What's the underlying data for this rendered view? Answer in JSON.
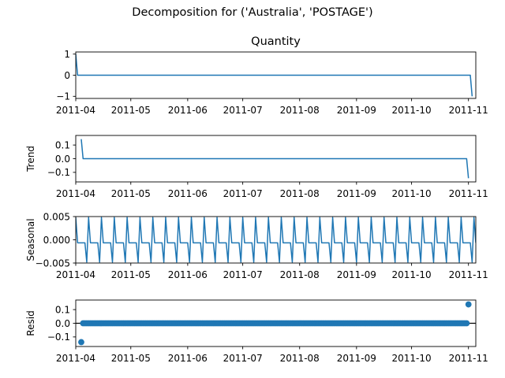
{
  "figure": {
    "title": "Decomposition for ('Australia', 'POSTAGE')"
  },
  "colors": {
    "series": "#1f77b4",
    "axis": "#000000",
    "zero_line": "#000000"
  },
  "chart_data": [
    {
      "type": "line",
      "title": "Quantity",
      "ylabel": "",
      "x_range": [
        "2011-04-01",
        "2011-11-05"
      ],
      "x_ticks": [
        "2011-04",
        "2011-05",
        "2011-06",
        "2011-07",
        "2011-08",
        "2011-09",
        "2011-10",
        "2011-11"
      ],
      "ylim": [
        -1.1,
        1.1
      ],
      "y_ticks": [
        -1,
        0,
        1
      ],
      "y_tick_labels": [
        "−1",
        "0",
        "1"
      ],
      "series": [
        {
          "x": [
            "2011-04-01",
            "2011-04-02",
            "2011-11-02",
            "2011-11-03"
          ],
          "y": [
            1,
            0,
            0,
            -1
          ]
        }
      ]
    },
    {
      "type": "line",
      "title": "",
      "ylabel": "Trend",
      "x_range": [
        "2011-04-01",
        "2011-11-05"
      ],
      "x_ticks": [
        "2011-04",
        "2011-05",
        "2011-06",
        "2011-07",
        "2011-08",
        "2011-09",
        "2011-10",
        "2011-11"
      ],
      "ylim": [
        -0.17,
        0.17
      ],
      "y_ticks": [
        -0.1,
        0.0,
        0.1
      ],
      "y_tick_labels": [
        "−0.1",
        "0.0",
        "0.1"
      ],
      "series": [
        {
          "x": [
            "2011-04-04",
            "2011-04-05",
            "2011-10-31",
            "2011-11-01"
          ],
          "y": [
            0.143,
            0,
            0,
            -0.143
          ]
        }
      ]
    },
    {
      "type": "line",
      "title": "",
      "ylabel": "Seasonal",
      "x_range": [
        "2011-04-01",
        "2011-11-05"
      ],
      "x_ticks": [
        "2011-04",
        "2011-05",
        "2011-06",
        "2011-07",
        "2011-08",
        "2011-09",
        "2011-10",
        "2011-11"
      ],
      "ylim": [
        -0.005,
        0.005
      ],
      "y_ticks": [
        -0.005,
        0.0,
        0.005
      ],
      "y_tick_labels": [
        "−0.005",
        "0.000",
        "0.005"
      ],
      "series": [
        {
          "period_days": 7,
          "pattern": [
            0.0048,
            -0.00065,
            -0.00065,
            -0.00065,
            -0.00065,
            -0.00065,
            -0.0048
          ]
        }
      ]
    },
    {
      "type": "scatter",
      "title": "",
      "ylabel": "Resid",
      "x_range": [
        "2011-04-01",
        "2011-11-05"
      ],
      "x_ticks": [
        "2011-04",
        "2011-05",
        "2011-06",
        "2011-07",
        "2011-08",
        "2011-09",
        "2011-10",
        "2011-11"
      ],
      "ylim": [
        -0.17,
        0.17
      ],
      "y_ticks": [
        -0.1,
        0.0,
        0.1
      ],
      "y_tick_labels": [
        "−0.1",
        "0.0",
        "0.1"
      ],
      "zero_line": true,
      "series": [
        {
          "range": [
            "2011-04-04",
            "2011-11-01"
          ],
          "default_y": 0,
          "outliers": [
            {
              "x": "2011-04-04",
              "y": -0.138
            },
            {
              "x": "2011-11-01",
              "y": 0.138
            }
          ]
        }
      ]
    }
  ]
}
